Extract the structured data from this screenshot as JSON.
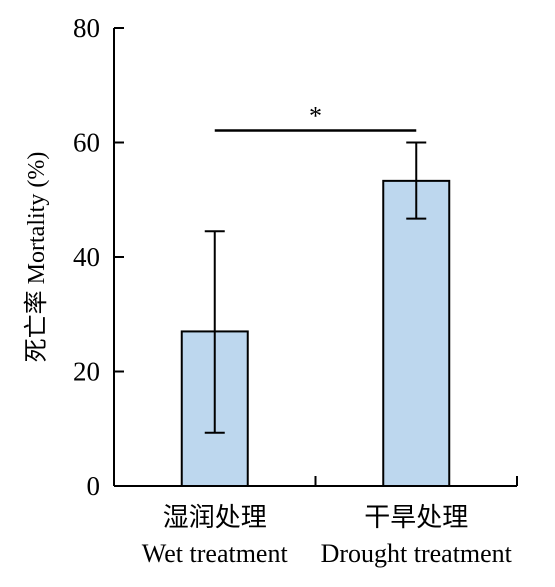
{
  "chart_data": {
    "type": "bar",
    "categories": [
      {
        "label_cn": "湿润处理",
        "label_en": "Wet treatment"
      },
      {
        "label_cn": "干旱处理",
        "label_en": "Drought treatment"
      }
    ],
    "series": [
      {
        "values": [
          27,
          53.3
        ],
        "error_upper": [
          44.5,
          60
        ],
        "error_lower": [
          9.3,
          46.7
        ],
        "color": "#bdd7ee"
      }
    ],
    "ylabel": "死亡率 Mortality (%)",
    "xlabel": "",
    "ylim": [
      0,
      80
    ],
    "yticks": [
      0,
      20,
      40,
      60,
      80
    ],
    "significance": {
      "between": [
        0,
        1
      ],
      "label": "*"
    },
    "grid": false,
    "bar_edge_color": "#000000",
    "axis_color": "#000000"
  }
}
